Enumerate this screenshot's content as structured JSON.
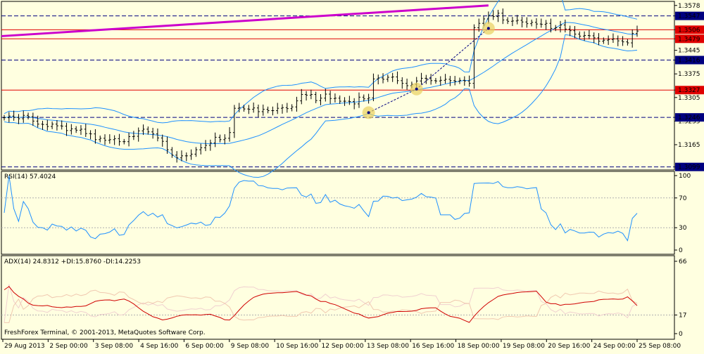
{
  "colors": {
    "background": "#ffffe0",
    "axis": "#000000",
    "bars": "#000000",
    "bollinger": "#1e90ff",
    "trendline": "#cc00cc",
    "resistance": "#e00000",
    "support": "#000080",
    "rsi_line": "#1e90ff",
    "adx_line": "#d00000",
    "di_plus": "#f0d0d0",
    "di_minus": "#f0c8b0",
    "marker_highlight": "#e8d060"
  },
  "price_pane": {
    "price_ticks": [
      "1.3578",
      "1.3547",
      "1.3506",
      "1.3479",
      "1.3445",
      "1.3416",
      "1.3375",
      "1.3327",
      "1.3305",
      "1.3246",
      "1.3235",
      "1.3165",
      "1.3099"
    ],
    "highlighted_levels": [
      {
        "label": "1.3547",
        "style": "dashed",
        "color": "#000080"
      },
      {
        "label": "1.3506",
        "style": "solid",
        "color": "#e00000"
      },
      {
        "label": "1.3479",
        "style": "solid",
        "color": "#e00000"
      },
      {
        "label": "1.3416",
        "style": "dashed",
        "color": "#000080"
      },
      {
        "label": "1.3327",
        "style": "solid",
        "color": "#e00000"
      },
      {
        "label": "1.3246",
        "style": "dashed",
        "color": "#000080"
      },
      {
        "label": "1.3099",
        "style": "dashed",
        "color": "#000080"
      }
    ]
  },
  "rsi_pane": {
    "label": "RSI(14) 57.4024",
    "ticks": [
      "100",
      "70",
      "30",
      "0"
    ]
  },
  "adx_pane": {
    "label": "ADX(14) 24.8312 +DI:15.8760 -DI:14.2253",
    "ticks": [
      "66",
      "17",
      "0"
    ]
  },
  "time_axis": [
    "29 Aug 2013",
    "2 Sep 00:00",
    "3 Sep 08:00",
    "4 Sep 16:00",
    "6 Sep 00:00",
    "9 Sep 08:00",
    "10 Sep 16:00",
    "12 Sep 00:00",
    "13 Sep 08:00",
    "16 Sep 16:00",
    "18 Sep 00:00",
    "19 Sep 08:00",
    "20 Sep 16:00",
    "24 Sep 00:00",
    "25 Sep 08:00"
  ],
  "copyright": "FreshForex Terminal, © 2001-2013, MetaQuotes Software Corp.",
  "chart_data": {
    "type": "line",
    "title": "",
    "close": [
      1.3245,
      1.325,
      1.3246,
      1.3242,
      1.3252,
      1.3248,
      1.3235,
      1.3226,
      1.3225,
      1.3219,
      1.3226,
      1.3221,
      1.322,
      1.3207,
      1.3212,
      1.3208,
      1.3211,
      1.3198,
      1.3197,
      1.318,
      1.3184,
      1.3178,
      1.318,
      1.3183,
      1.3174,
      1.3174,
      1.3189,
      1.319,
      1.3206,
      1.3211,
      1.3203,
      1.3197,
      1.3185,
      1.3175,
      1.315,
      1.3134,
      1.3126,
      1.3132,
      1.3132,
      1.3137,
      1.315,
      1.3156,
      1.3163,
      1.317,
      1.3187,
      1.318,
      1.3184,
      1.3201,
      1.3273,
      1.3275,
      1.3271,
      1.327,
      1.3274,
      1.3263,
      1.327,
      1.3266,
      1.3266,
      1.3273,
      1.3275,
      1.3272,
      1.3277,
      1.3295,
      1.3314,
      1.3312,
      1.3314,
      1.3296,
      1.3303,
      1.3315,
      1.3302,
      1.3303,
      1.3294,
      1.3294,
      1.3293,
      1.3286,
      1.3306,
      1.3301,
      1.3304,
      1.336,
      1.3363,
      1.3359,
      1.3365,
      1.3366,
      1.3355,
      1.3347,
      1.334,
      1.3344,
      1.3354,
      1.3362,
      1.3361,
      1.3355,
      1.3354,
      1.3356,
      1.3359,
      1.3355,
      1.3353,
      1.3356,
      1.3354,
      1.3347,
      1.3512,
      1.3525,
      1.3538,
      1.3548,
      1.3545,
      1.3555,
      1.3535,
      1.3531,
      1.3532,
      1.3534,
      1.3529,
      1.3524,
      1.3528,
      1.3523,
      1.3522,
      1.3525,
      1.351,
      1.3512,
      1.352,
      1.3508,
      1.3503,
      1.3493,
      1.3487,
      1.3489,
      1.3488,
      1.3482,
      1.3472,
      1.3475,
      1.3477,
      1.3479,
      1.3473,
      1.347,
      1.3467,
      1.3495,
      1.3502
    ]
  }
}
